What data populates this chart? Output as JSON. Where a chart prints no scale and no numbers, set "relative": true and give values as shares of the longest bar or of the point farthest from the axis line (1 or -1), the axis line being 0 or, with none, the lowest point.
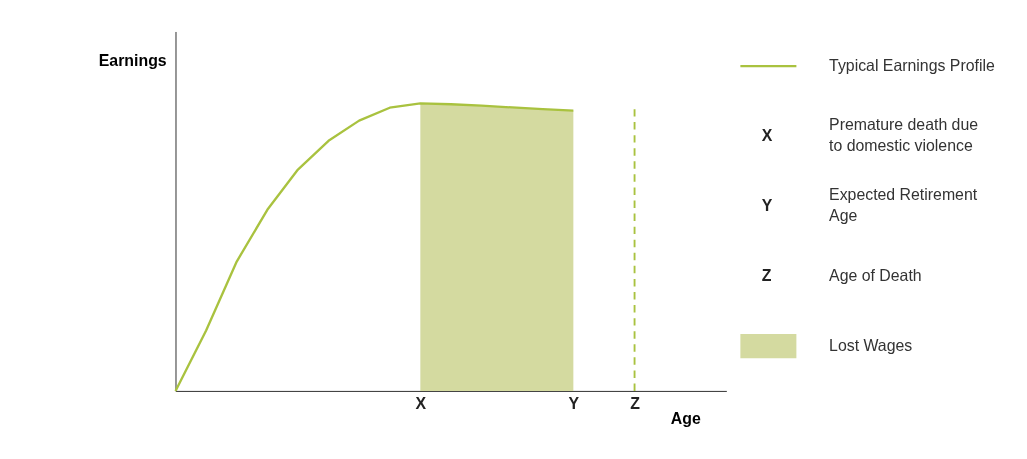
{
  "chart_data": {
    "type": "line",
    "relative": true,
    "xlabel": "Age",
    "ylabel": "Earnings",
    "categories": [
      null,
      null,
      null,
      null,
      null,
      null,
      null,
      null,
      "X",
      null,
      null,
      null,
      null,
      "Y",
      null,
      "Z",
      null,
      null,
      null
    ],
    "series": [
      {
        "name": "Typical Earnings Profile",
        "color": "#a9c23f",
        "values": [
          0,
          0.21,
          0.45,
          0.63,
          0.77,
          0.87,
          0.94,
          0.985,
          1.0,
          0.997,
          0.992,
          0.986,
          0.98,
          0.975,
          null,
          null,
          null,
          null,
          null
        ]
      },
      {
        "name": "Lost Wages",
        "type": "area",
        "color": "#d4daa0",
        "values": [
          null,
          null,
          null,
          null,
          null,
          null,
          null,
          null,
          1.0,
          0.997,
          0.992,
          0.986,
          0.98,
          0.975,
          null,
          null,
          null,
          null,
          null
        ]
      }
    ],
    "ref_lines": [
      {
        "axis": "x",
        "value": "Z",
        "color": "#a9c23f",
        "line_style": "dashed"
      }
    ],
    "annotations": [
      "X",
      "Premature death due to domestic violence",
      "Y",
      "Expected Retirement Age",
      "Z",
      "Age of Death"
    ],
    "grid": false,
    "legend": "right"
  }
}
